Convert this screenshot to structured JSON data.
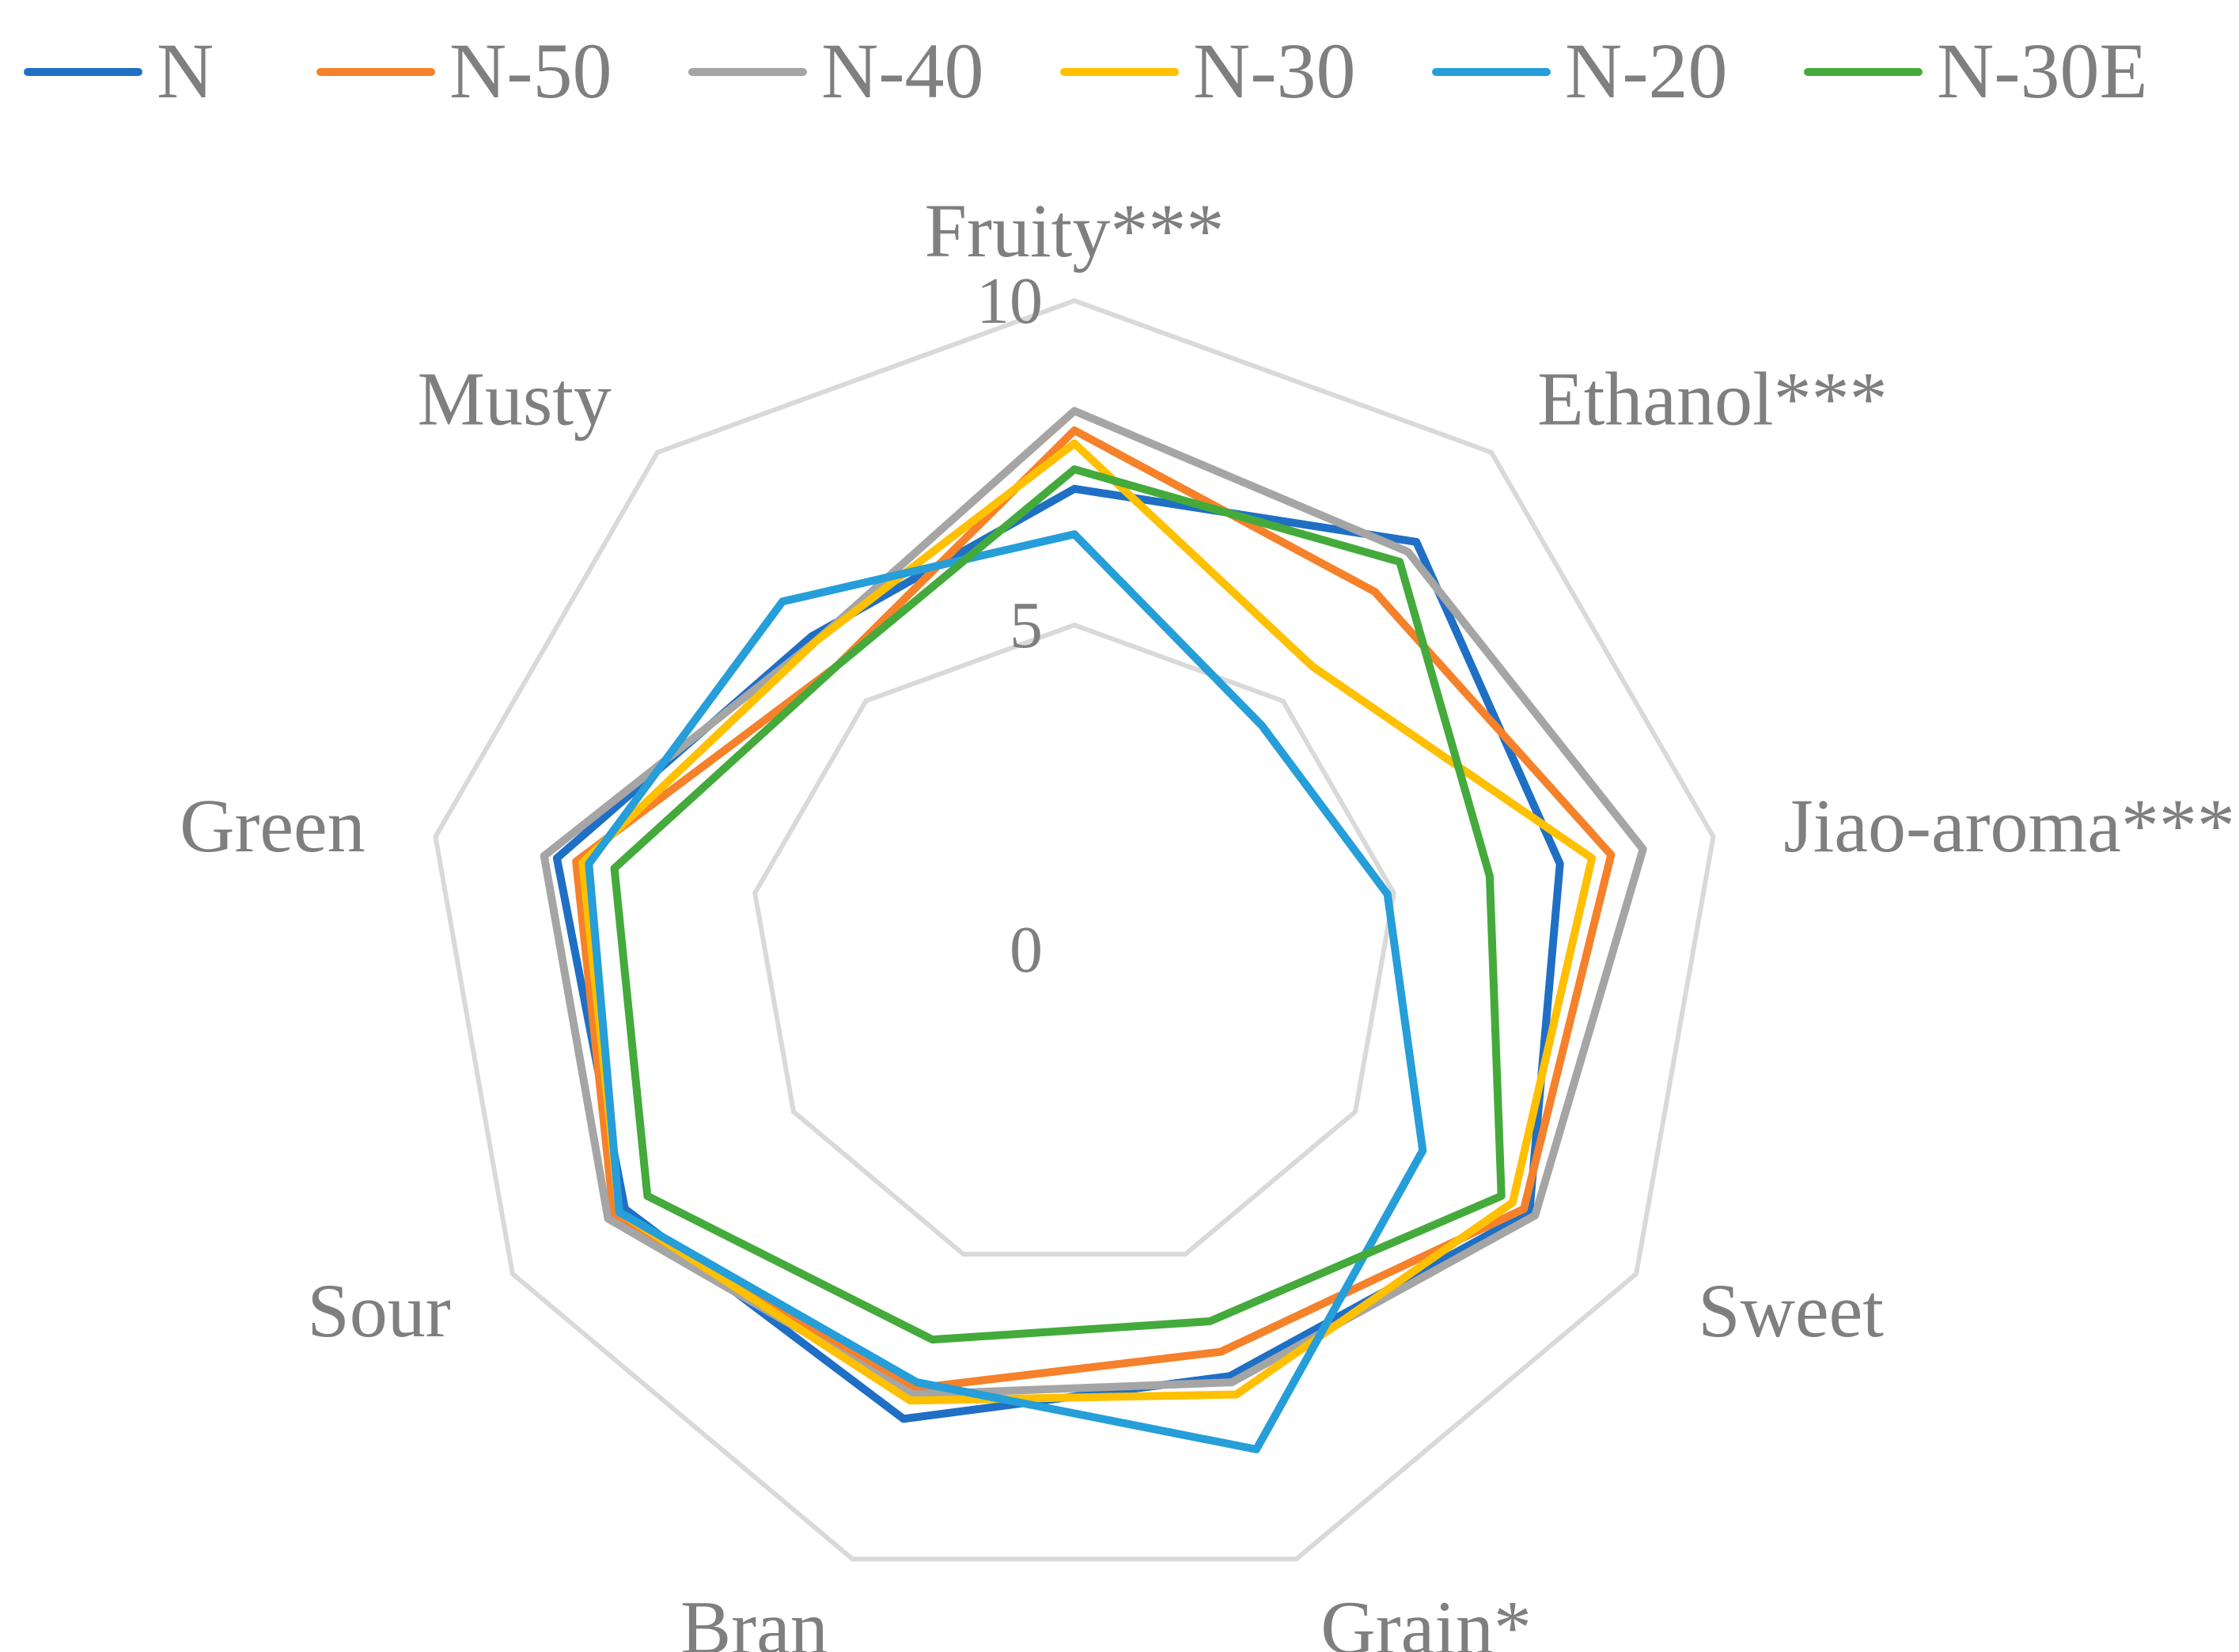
{
  "chart_data": {
    "type": "radar",
    "axes": [
      "Fruity***",
      "Ethanol***",
      "Jiao-aroma***",
      "Sweet",
      "Grain*",
      "Bran",
      "Sour",
      "Green",
      "Musty"
    ],
    "rlim": [
      0,
      10
    ],
    "ticks": [
      "0",
      "5",
      "10"
    ],
    "grid": true,
    "legend": "top",
    "series": [
      {
        "name": "N",
        "color": "#1f6fc5",
        "values": [
          7.1,
          8.2,
          7.6,
          8.1,
          7.0,
          7.7,
          8.0,
          8.1,
          6.3
        ]
      },
      {
        "name": "N-50",
        "color": "#f5812a",
        "values": [
          8.0,
          7.2,
          8.4,
          8.0,
          6.6,
          7.2,
          8.2,
          7.8,
          5.7
        ]
      },
      {
        "name": "N-40",
        "color": "#a5a5a5",
        "values": [
          8.3,
          8.0,
          8.9,
          8.2,
          7.1,
          7.3,
          8.3,
          8.3,
          6.2
        ]
      },
      {
        "name": "N-30",
        "color": "#ffc000",
        "values": [
          7.8,
          5.7,
          8.1,
          7.8,
          7.3,
          7.4,
          8.1,
          7.7,
          6.2
        ]
      },
      {
        "name": "N-20",
        "color": "#259ed9",
        "values": [
          6.4,
          4.5,
          4.9,
          6.2,
          8.2,
          7.1,
          8.1,
          7.6,
          7.0
        ]
      },
      {
        "name": "N-30E",
        "color": "#44aa3c",
        "values": [
          7.4,
          7.8,
          6.5,
          7.6,
          6.1,
          6.4,
          7.6,
          7.2,
          5.7
        ]
      }
    ]
  }
}
